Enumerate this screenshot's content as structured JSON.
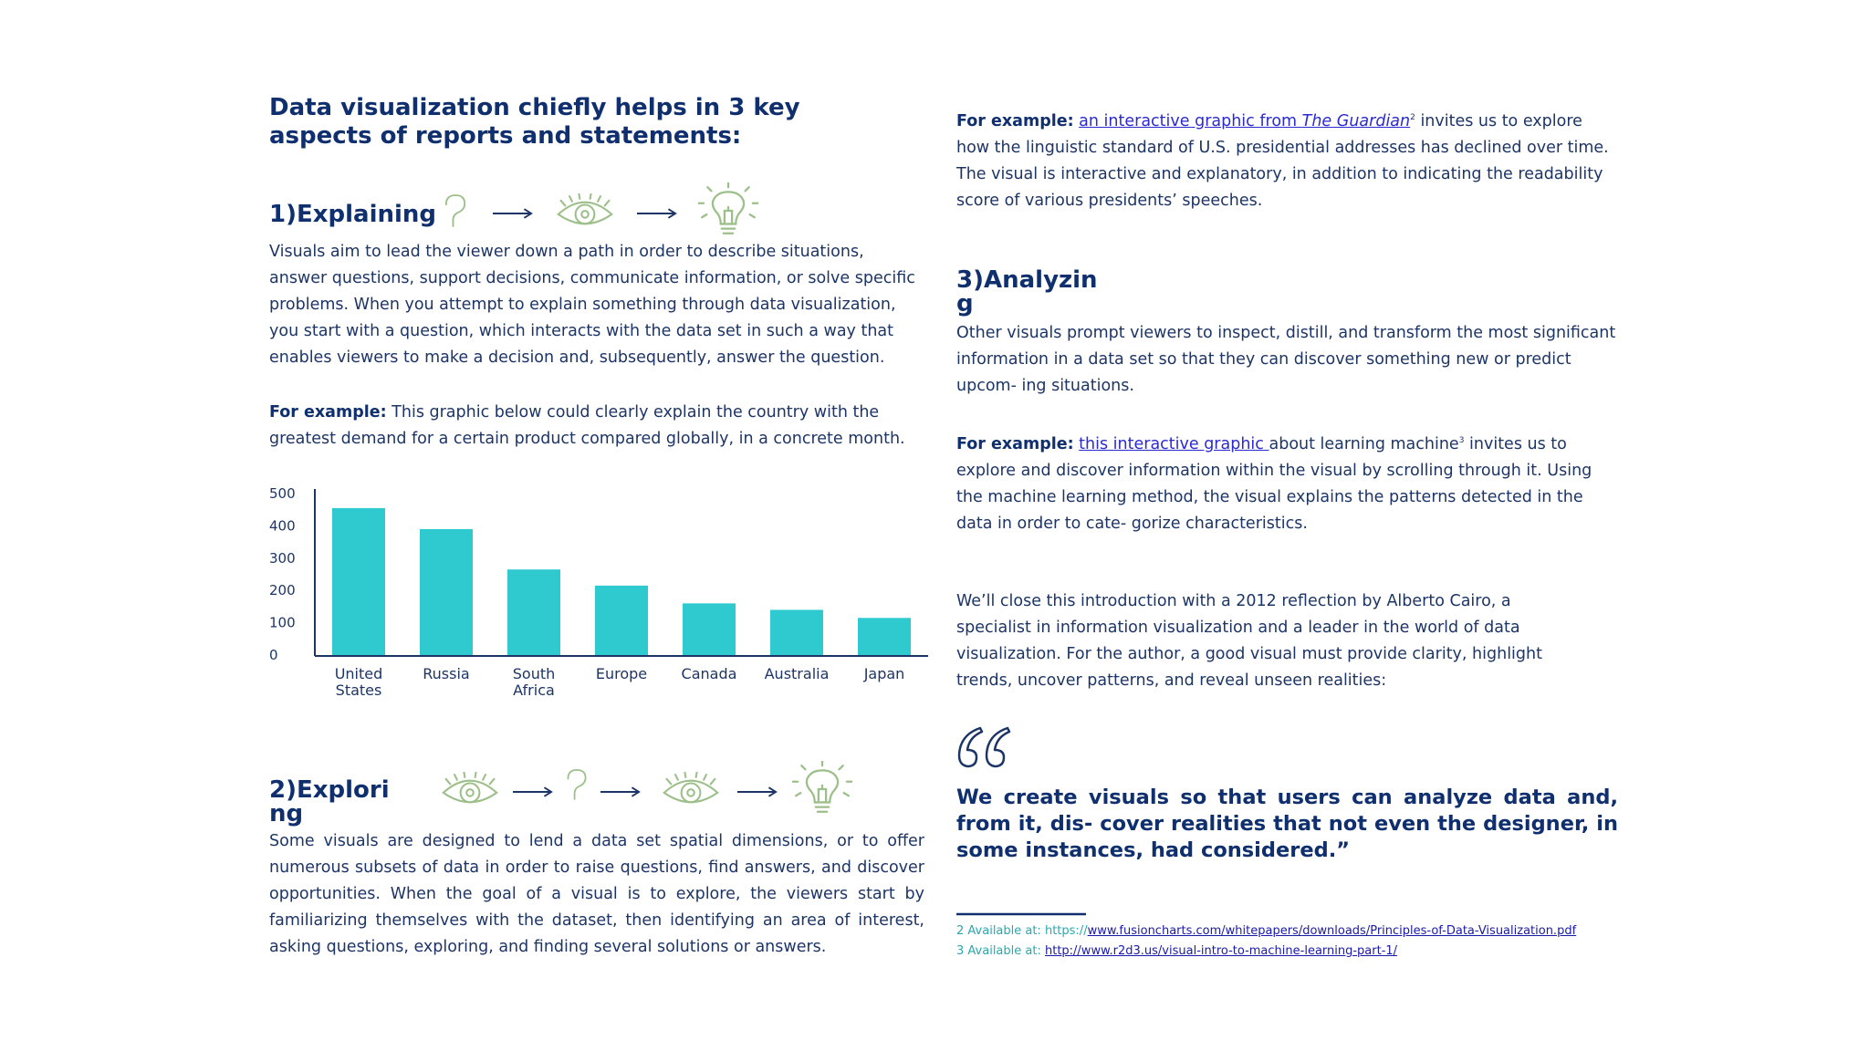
{
  "heading": "Data visualization chiefly helps in 3 key aspects of reports and statements:",
  "explaining": {
    "title": "1)Explaining",
    "body": "Visuals aim to lead the viewer down a path in order to describe situations, answer questions, support decisions, communicate information, or solve specific problems. When you attempt to explain something through data visualization, you start with a question, which interacts with the data set in such a way that enables viewers to make a decision and, subsequently, answer the question.",
    "example_label": "For example:",
    "example_text": "This graphic below could clearly explain the country with the greatest demand for a certain product compared globally, in a concrete month."
  },
  "chart_data": {
    "type": "bar",
    "categories": [
      "United States",
      "Russia",
      "South Africa",
      "Europe",
      "Canada",
      "Australia",
      "Japan"
    ],
    "values": [
      455,
      390,
      265,
      215,
      160,
      140,
      115
    ],
    "color": "#2ecad0",
    "ylim": [
      0,
      500
    ],
    "yticks": [
      0,
      100,
      200,
      300,
      400,
      500
    ],
    "grid": false
  },
  "exploring": {
    "title": "2)Exploring",
    "body": "Some visuals are designed to lend a data set spatial dimensions, or to offer numerous subsets of data in order to raise questions, find answers, and discover opportunities. When the goal of a visual is to explore, the viewers start by familiarizing themselves with the dataset, then identifying an area of interest, asking questions, exploring, and finding several solutions or answers."
  },
  "guardian_example": {
    "label": "For example:",
    "link_text": "an interactive graphic from ",
    "link_italic": "The Guardian",
    "footnote_ref": "2",
    "text": "invites us to explore how the linguistic standard of U.S. presidential addresses has declined over time. The visual is interactive and explanatory, in addition to indicating the readability score of various presidents’ speeches."
  },
  "analyzing": {
    "title": "3)Analyzing",
    "body": "Other visuals prompt viewers to inspect, distill, and transform the most significant information in a data set so that they can discover something new or predict upcom- ing situations.",
    "example_label": "For example:",
    "link_text": "this interactive graphic ",
    "text_a": "about learning machine",
    "footnote_ref": "3",
    "text_b": "invites us to explore and discover information within the visual by scrolling through it. Using the machine learning method, the visual explains the patterns detected in the data in order to cate- gorize characteristics."
  },
  "closing": "We’ll close this introduction with a 2012 reflection by Alberto Cairo, a specialist in information visualization and a leader in the world of data visualization. For the author, a good visual must provide clarity, highlight trends, uncover patterns, and reveal unseen realities:",
  "quote": "We create visuals so that users can analyze data and, from it, dis- cover realities that not even the designer, in some instances, had considered.”",
  "footnotes": [
    {
      "number": "2",
      "prefix": "Available at: https://",
      "link": "www.fusioncharts.com/whitepapers/downloads/Principles-of-Data-Visualization.pdf"
    },
    {
      "number": "3",
      "prefix": "Available at:",
      "link": "http://www.r2d3.us/visual-intro-to-machine-learning-part-1/"
    }
  ]
}
